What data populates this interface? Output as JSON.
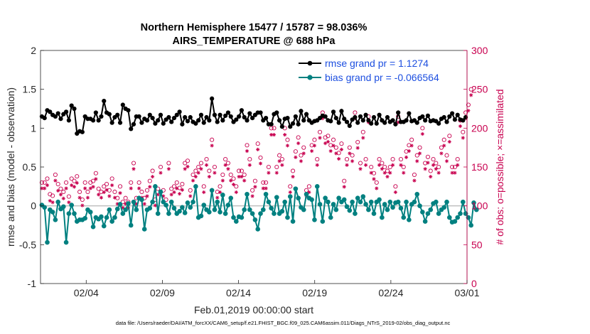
{
  "chart_data": {
    "type": "line",
    "title": "Northern Hemisphere 15477 / 15787 = 98.036%",
    "subtitle": "AIRS_TEMPERATURE @ 688 hPa",
    "xlabel": "Feb.01,2019 00:00:00 start",
    "ylabel": "rmse and bias (model - observation)",
    "ylabel_right": "# of obs: o=possible; ×=assimilated",
    "footnote": "data file: /Users/raeder/DAI/ATM_forcXX/CAM6_setup/f.e21.FHIST_BGC.f09_025.CAM6assim.011/Diags_NTrS_2019-02/obs_diag_output.nc",
    "x_tick_labels": [
      "02/04",
      "02/09",
      "02/14",
      "02/19",
      "02/24",
      "03/01"
    ],
    "x_tick_days": [
      3,
      8,
      13,
      18,
      23,
      28
    ],
    "xlim_days": [
      0,
      28
    ],
    "ylim": [
      -1,
      2
    ],
    "y_ticks": [
      -1,
      -0.5,
      0,
      0.5,
      1,
      1.5,
      2
    ],
    "y_tick_labels": [
      "-1",
      "-0.5",
      "0",
      "0.5",
      "1",
      "1.5",
      "2"
    ],
    "ylim_right": [
      0,
      300
    ],
    "y_ticks_right": [
      0,
      50,
      100,
      150,
      200,
      250,
      300
    ],
    "y_tick_labels_right": [
      "0",
      "50",
      "100",
      "150",
      "200",
      "250",
      "300"
    ],
    "series": [
      {
        "name": "rmse grand pr = 1.1274",
        "color": "#000000",
        "values": [
          1.15,
          1.13,
          1.23,
          1.21,
          1.17,
          1.15,
          1.19,
          1.12,
          1.18,
          1.21,
          1.1,
          1.29,
          1.25,
          0.93,
          0.96,
          0.95,
          1.15,
          1.12,
          1.12,
          1.1,
          1.2,
          1.1,
          1.15,
          1.35,
          1.2,
          1.18,
          1.07,
          1.14,
          1.17,
          1.07,
          1.3,
          1.25,
          1.23,
          0.99,
          1.05,
          1.15,
          1.15,
          1.07,
          1.12,
          1.1,
          1.17,
          1.13,
          1.06,
          1.1,
          1.17,
          1.06,
          1.11,
          1.14,
          1.08,
          1.13,
          1.17,
          1.21,
          1.05,
          1.14,
          1.09,
          1.14,
          1.08,
          1.06,
          1.1,
          1.17,
          1.07,
          1.14,
          1.1,
          1.38,
          1.17,
          1.08,
          1.17,
          1.1,
          1.16,
          1.2,
          1.15,
          1.08,
          1.11,
          1.15,
          1.23,
          1.14,
          1.1,
          1.19,
          1.13,
          1.17,
          1.2,
          1.2,
          1.1,
          1.13,
          1.05,
          1.05,
          1.18,
          1.2,
          1.1,
          1.02,
          1.12,
          1.13,
          1.02,
          1.06,
          1.15,
          1.05,
          1.22,
          1.1,
          1.18,
          1.1,
          1.07,
          1.09,
          1.1,
          1.13,
          1.16,
          1.15,
          1.1,
          1.09,
          1.21,
          1.13,
          1.07,
          1.22,
          1.12,
          1.08,
          1.03,
          1.11,
          1.14,
          1.07,
          1.15,
          1.1,
          1.17,
          1.1,
          1.06,
          1.14,
          1.06,
          1.17,
          1.1,
          1.07,
          1.14,
          1.08,
          1.1,
          1.05,
          1.2,
          1.08,
          1.08,
          1.1,
          1.19,
          1.09,
          1.1,
          1.07,
          1.13,
          1.15,
          1.1,
          1.16,
          1.09,
          1.1,
          1.09,
          1.06,
          1.12,
          1.14,
          1.08,
          1.15,
          1.19,
          1.11,
          1.17,
          1.11,
          1.1,
          1.14
        ]
      },
      {
        "name": "bias grand pr = -0.066564",
        "color": "#008080",
        "values": [
          0.01,
          -0.02,
          -0.47,
          -0.05,
          -0.08,
          -0.18,
          0.05,
          -0.04,
          -0.01,
          -0.47,
          -0.1,
          0.01,
          -0.1,
          -0.2,
          -0.18,
          -0.18,
          -0.16,
          -0.05,
          -0.08,
          -0.27,
          -0.15,
          -0.17,
          -0.14,
          -0.26,
          -0.15,
          -0.05,
          -0.2,
          -0.15,
          -0.04,
          0.02,
          -0.1,
          -0.05,
          0.03,
          -0.25,
          0.05,
          -0.05,
          0.1,
          0.08,
          -0.3,
          -0.05,
          -0.03,
          0.05,
          0.25,
          -0.1,
          0.18,
          0.05,
          0.01,
          -0.1,
          0.05,
          -0.03,
          -0.1,
          -0.07,
          -0.02,
          -0.09,
          0.04,
          -0.02,
          0.05,
          0.25,
          -0.15,
          -0.13,
          0.01,
          -0.05,
          -0.08,
          0.2,
          -0.05,
          0.05,
          -0.08,
          0.14,
          -0.1,
          0.01,
          0.1,
          -0.15,
          -0.2,
          -0.14,
          -0.15,
          -0.05,
          0.15,
          -0.05,
          -0.1,
          -0.18,
          -0.3,
          -0.1,
          -0.05,
          0.15,
          0.05,
          -0.03,
          -0.1,
          0.11,
          -0.1,
          -0.07,
          0.05,
          -0.15,
          0.12,
          -0.2,
          0.22,
          0.1,
          -0.02,
          -0.05,
          0.15,
          0.1,
          0.08,
          -0.18,
          0.25,
          0.02,
          -0.2,
          0.1,
          0.05,
          -0.15,
          0.02,
          -0.05,
          0.1,
          0.05,
          0.08,
          -0.01,
          -0.06,
          0.05,
          -0.1,
          0.1,
          0.05,
          0.12,
          0.02,
          -0.05,
          0.05,
          -0.1,
          0.05,
          0.08,
          -0.15,
          0.02,
          -0.05,
          0.05,
          -0.02,
          0.04,
          0.05,
          -0.03,
          -0.15,
          0.05,
          -0.18,
          0.02,
          0.05,
          0.15,
          0.0,
          -0.08,
          -0.2,
          -0.1,
          -0.05,
          0.03,
          0.05,
          -0.1,
          -0.05,
          -0.02,
          0.05,
          -0.15,
          -0.21,
          -0.2,
          -0.15,
          -0.1,
          0.05,
          -0.1,
          -0.15,
          -0.25,
          0.04,
          -0.05
        ]
      }
    ],
    "obs_possible": [
      130,
      130,
      135,
      115,
      113,
      140,
      128,
      122,
      118,
      130,
      112,
      135,
      132,
      138,
      118,
      108,
      130,
      118,
      130,
      132,
      142,
      122,
      118,
      125,
      128,
      120,
      135,
      118,
      110,
      125,
      105,
      110,
      105,
      130,
      155,
      110,
      130,
      118,
      110,
      120,
      132,
      145,
      108,
      122,
      150,
      120,
      108,
      155,
      122,
      125,
      130,
      123,
      128,
      155,
      158,
      120,
      140,
      145,
      150,
      155,
      125,
      160,
      145,
      185,
      150,
      118,
      125,
      140,
      160,
      155,
      140,
      135,
      125,
      145,
      145,
      140,
      178,
      160,
      120,
      132,
      180,
      162,
      130,
      130,
      150,
      200,
      200,
      150,
      165,
      160,
      200,
      185,
      125,
      145,
      170,
      188,
      165,
      175,
      120,
      125,
      178,
      185,
      160,
      195,
      220,
      188,
      190,
      178,
      185,
      175,
      168,
      180,
      132,
      160,
      175,
      165,
      220,
      182,
      155,
      195,
      160,
      215,
      150,
      142,
      130,
      160,
      155,
      150,
      145,
      150,
      160,
      125,
      215,
      160,
      150,
      170,
      178,
      185,
      140,
      165,
      175,
      200,
      155,
      163,
      145,
      160,
      155,
      150,
      175,
      185,
      165,
      190,
      150,
      150,
      160,
      210,
      195,
      220,
      230,
      250
    ],
    "obs_assimilated": [
      128,
      128,
      132,
      112,
      110,
      138,
      125,
      120,
      115,
      128,
      110,
      132,
      130,
      135,
      116,
      106,
      128,
      116,
      128,
      130,
      140,
      120,
      116,
      123,
      126,
      118,
      132,
      116,
      108,
      122,
      103,
      108,
      103,
      128,
      153,
      108,
      128,
      116,
      108,
      118,
      130,
      143,
      106,
      120,
      148,
      118,
      106,
      153,
      120,
      123,
      128,
      121,
      126,
      153,
      156,
      118,
      138,
      143,
      148,
      153,
      123,
      158,
      143,
      183,
      148,
      116,
      123,
      138,
      158,
      153,
      138,
      133,
      123,
      143,
      143,
      138,
      176,
      158,
      118,
      130,
      178,
      160,
      128,
      128,
      148,
      197,
      197,
      148,
      163,
      158,
      197,
      183,
      123,
      143,
      168,
      186,
      163,
      173,
      118,
      123,
      176,
      183,
      158,
      193,
      218,
      186,
      188,
      176,
      183,
      173,
      166,
      178,
      130,
      158,
      173,
      163,
      218,
      180,
      153,
      193,
      158,
      213,
      148,
      140,
      128,
      158,
      153,
      148,
      143,
      148,
      158,
      123,
      213,
      158,
      148,
      168,
      176,
      183,
      138,
      163,
      173,
      198,
      153,
      161,
      143,
      158,
      153,
      148,
      173,
      183,
      163,
      188,
      148,
      148,
      158,
      208,
      193,
      218,
      228,
      248
    ],
    "colors": {
      "rmse": "#000000",
      "bias": "#008080",
      "obs": "#c8004f",
      "legend_text": "#1d4fe0",
      "zero_line": "#bfbfbf"
    }
  }
}
